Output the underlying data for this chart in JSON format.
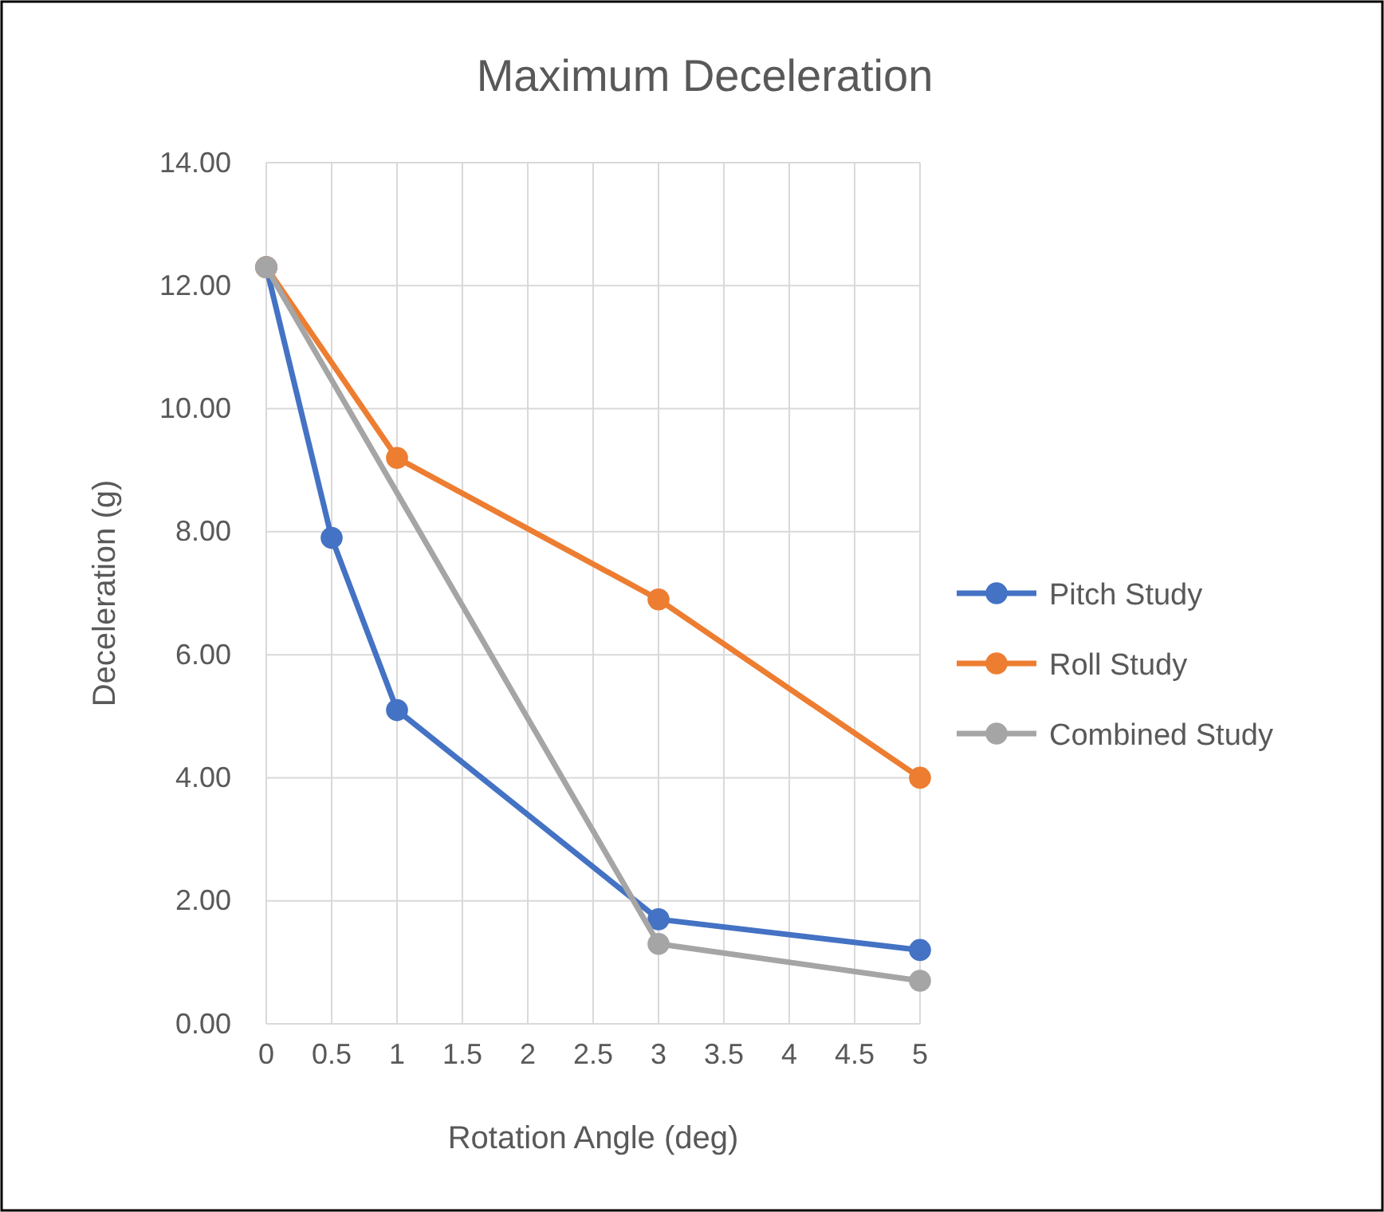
{
  "chart_data": {
    "type": "line",
    "title": "Maximum Deceleration",
    "xlabel": "Rotation Angle (deg)",
    "ylabel": "Deceleration (g)",
    "xlim": [
      0,
      5
    ],
    "xticks": [
      0,
      0.5,
      1,
      1.5,
      2,
      2.5,
      3,
      3.5,
      4,
      4.5,
      5
    ],
    "ylim": [
      0,
      14
    ],
    "yticks": [
      {
        "value": 0,
        "label": "0.00"
      },
      {
        "value": 2,
        "label": "2.00"
      },
      {
        "value": 4,
        "label": "4.00"
      },
      {
        "value": 6,
        "label": "6.00"
      },
      {
        "value": 8,
        "label": "8.00"
      },
      {
        "value": 10,
        "label": "10.00"
      },
      {
        "value": 12,
        "label": "12.00"
      },
      {
        "value": 14,
        "label": "14.00"
      }
    ],
    "grid": true,
    "legend": "right",
    "marker": "circle",
    "line_style": "solid",
    "series": [
      {
        "name": "Pitch Study",
        "color": "#4472c4",
        "x": [
          0,
          0.5,
          1,
          3,
          5
        ],
        "values": [
          12.3,
          7.9,
          5.1,
          1.7,
          1.2
        ]
      },
      {
        "name": "Roll Study",
        "color": "#ed7d31",
        "x": [
          0,
          1,
          3,
          5
        ],
        "values": [
          12.3,
          9.2,
          6.9,
          4.0
        ]
      },
      {
        "name": "Combined Study",
        "color": "#a5a5a5",
        "x": [
          0,
          3,
          5
        ],
        "values": [
          12.3,
          1.3,
          0.7
        ]
      }
    ]
  }
}
